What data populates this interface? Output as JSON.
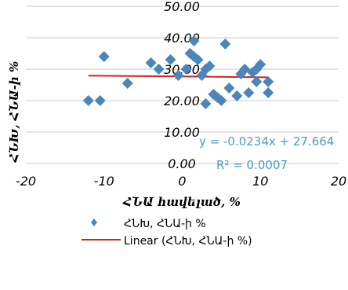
{
  "chart_data": {
    "type": "scatter",
    "xlabel": "ՀՆԱ հավելած, %",
    "ylabel": "ՀՆԽ, ՀՆԱ-ի %",
    "xlim": [
      -20,
      20
    ],
    "ylim": [
      0,
      50
    ],
    "xticks": [
      "-20",
      "-10",
      "0",
      "10",
      "20"
    ],
    "yticks": [
      "0.00",
      "10.00",
      "20.00",
      "30.00",
      "40.00",
      "50.00"
    ],
    "grid": "horizontal",
    "series": [
      {
        "name": "ՀՆԽ, ՀՆԱ-ի %",
        "marker": "diamond",
        "color": "#4a86b8",
        "points": [
          [
            -12,
            20
          ],
          [
            -10.5,
            20
          ],
          [
            -10,
            34
          ],
          [
            -7,
            25.5
          ],
          [
            -4,
            32
          ],
          [
            -3,
            30
          ],
          [
            -1.5,
            33
          ],
          [
            -0.5,
            28
          ],
          [
            0.5,
            30
          ],
          [
            1,
            35
          ],
          [
            1.5,
            39
          ],
          [
            1.5,
            34
          ],
          [
            2,
            33
          ],
          [
            2.5,
            28
          ],
          [
            3,
            30
          ],
          [
            3,
            19
          ],
          [
            3.5,
            31
          ],
          [
            4,
            22
          ],
          [
            4.5,
            21
          ],
          [
            5,
            20
          ],
          [
            5.5,
            38
          ],
          [
            6,
            24
          ],
          [
            7,
            21.5
          ],
          [
            7.5,
            28.5
          ],
          [
            8,
            30
          ],
          [
            8.5,
            22.5
          ],
          [
            9,
            29
          ],
          [
            9.5,
            26
          ],
          [
            9.5,
            30
          ],
          [
            10,
            31.5
          ],
          [
            11,
            26
          ],
          [
            11,
            22.5
          ]
        ]
      }
    ],
    "trendline": {
      "name": "Linear (ՀՆԽ, ՀՆԱ-ի %)",
      "type": "linear",
      "slope": -0.0234,
      "intercept": 27.664,
      "x_range": [
        -12,
        11
      ],
      "color": "#cc2222",
      "equation": "y = -0.0234x + 27.664",
      "r_squared": "R² = 0.0007"
    },
    "legend": {
      "position": "bottom",
      "entries": [
        "ՀՆԽ, ՀՆԱ-ի %",
        "Linear (ՀՆԽ, ՀՆԱ-ի %)"
      ]
    }
  }
}
